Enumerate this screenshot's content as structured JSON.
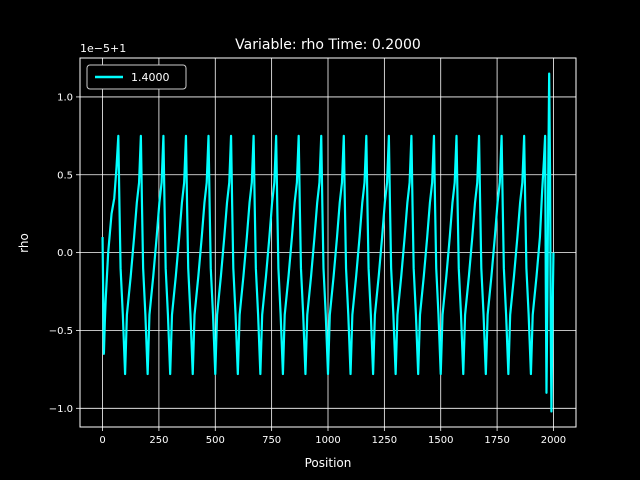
{
  "chart_data": {
    "type": "line",
    "title": "Variable: rho Time: 0.2000",
    "xlabel": "Position",
    "ylabel": "rho",
    "y_offset_label": "1e−5+1",
    "xlim": [
      -100,
      2100
    ],
    "ylim": [
      -1.12,
      1.25
    ],
    "x_ticks": [
      0,
      250,
      500,
      750,
      1000,
      1250,
      1500,
      1750,
      2000
    ],
    "x_tick_labels": [
      "0",
      "250",
      "500",
      "750",
      "1000",
      "1250",
      "1500",
      "1750",
      "2000"
    ],
    "y_ticks": [
      -1.0,
      -0.5,
      0.0,
      0.5,
      1.0
    ],
    "y_tick_labels": [
      "−1.0",
      "−0.5",
      "0.0",
      "0.5",
      "1.0"
    ],
    "grid": true,
    "legend_position": "top-left",
    "series": [
      {
        "name": "1.4000",
        "color": "#00ffff",
        "x": [
          0,
          6,
          10,
          14,
          25,
          40,
          52,
          62,
          70,
          75,
          80,
          90,
          100,
          108,
          125,
          140,
          152,
          162,
          170,
          175,
          180,
          190,
          200,
          208,
          225,
          240,
          252,
          262,
          270,
          275,
          280,
          290,
          300,
          308,
          325,
          340,
          352,
          362,
          370,
          375,
          380,
          390,
          400,
          408,
          425,
          440,
          452,
          462,
          470,
          475,
          480,
          490,
          500,
          508,
          525,
          540,
          552,
          562,
          570,
          575,
          580,
          590,
          600,
          608,
          625,
          640,
          652,
          662,
          670,
          675,
          680,
          690,
          700,
          708,
          725,
          740,
          752,
          762,
          770,
          775,
          780,
          790,
          800,
          808,
          825,
          840,
          852,
          862,
          870,
          875,
          880,
          890,
          900,
          908,
          925,
          940,
          952,
          962,
          970,
          975,
          980,
          990,
          1000,
          1008,
          1025,
          1040,
          1052,
          1062,
          1070,
          1075,
          1080,
          1090,
          1100,
          1108,
          1125,
          1140,
          1152,
          1162,
          1170,
          1175,
          1180,
          1190,
          1200,
          1208,
          1225,
          1240,
          1252,
          1262,
          1270,
          1275,
          1280,
          1290,
          1300,
          1308,
          1325,
          1340,
          1352,
          1362,
          1370,
          1375,
          1380,
          1390,
          1400,
          1408,
          1425,
          1440,
          1452,
          1462,
          1470,
          1475,
          1480,
          1490,
          1500,
          1508,
          1525,
          1540,
          1552,
          1562,
          1570,
          1575,
          1580,
          1590,
          1600,
          1608,
          1625,
          1640,
          1652,
          1662,
          1670,
          1675,
          1680,
          1690,
          1700,
          1708,
          1725,
          1740,
          1752,
          1762,
          1770,
          1775,
          1780,
          1790,
          1800,
          1808,
          1825,
          1840,
          1852,
          1862,
          1870,
          1875,
          1880,
          1890,
          1900,
          1908,
          1925,
          1940,
          1950,
          1958,
          1963,
          1966,
          1969,
          1973,
          1977,
          1981,
          1985,
          1988,
          1991,
          1994,
          1997,
          2000
        ],
        "y": [
          0.1,
          -0.65,
          -0.45,
          -0.3,
          0.0,
          0.25,
          0.35,
          0.55,
          0.75,
          0.3,
          -0.1,
          -0.4,
          -0.78,
          -0.4,
          -0.15,
          0.1,
          0.32,
          0.45,
          0.75,
          0.3,
          -0.1,
          -0.4,
          -0.78,
          -0.4,
          -0.15,
          0.1,
          0.32,
          0.45,
          0.75,
          0.3,
          -0.1,
          -0.4,
          -0.78,
          -0.4,
          -0.15,
          0.1,
          0.32,
          0.45,
          0.75,
          0.3,
          -0.1,
          -0.4,
          -0.78,
          -0.4,
          -0.15,
          0.1,
          0.32,
          0.45,
          0.75,
          0.3,
          -0.1,
          -0.4,
          -0.78,
          -0.4,
          -0.15,
          0.1,
          0.32,
          0.45,
          0.75,
          0.3,
          -0.1,
          -0.4,
          -0.78,
          -0.4,
          -0.15,
          0.1,
          0.32,
          0.45,
          0.75,
          0.3,
          -0.1,
          -0.4,
          -0.78,
          -0.4,
          -0.15,
          0.1,
          0.32,
          0.45,
          0.75,
          0.3,
          -0.1,
          -0.4,
          -0.78,
          -0.4,
          -0.15,
          0.1,
          0.32,
          0.45,
          0.75,
          0.3,
          -0.1,
          -0.4,
          -0.78,
          -0.4,
          -0.15,
          0.1,
          0.32,
          0.45,
          0.75,
          0.3,
          -0.1,
          -0.4,
          -0.78,
          -0.4,
          -0.15,
          0.1,
          0.32,
          0.45,
          0.75,
          0.3,
          -0.1,
          -0.4,
          -0.78,
          -0.4,
          -0.15,
          0.1,
          0.32,
          0.45,
          0.75,
          0.3,
          -0.1,
          -0.4,
          -0.78,
          -0.4,
          -0.15,
          0.1,
          0.32,
          0.45,
          0.75,
          0.3,
          -0.1,
          -0.4,
          -0.78,
          -0.4,
          -0.15,
          0.1,
          0.32,
          0.45,
          0.75,
          0.3,
          -0.1,
          -0.4,
          -0.78,
          -0.4,
          -0.15,
          0.1,
          0.32,
          0.45,
          0.75,
          0.3,
          -0.1,
          -0.4,
          -0.78,
          -0.4,
          -0.15,
          0.1,
          0.32,
          0.45,
          0.75,
          0.3,
          -0.1,
          -0.4,
          -0.78,
          -0.4,
          -0.15,
          0.1,
          0.32,
          0.45,
          0.75,
          0.3,
          -0.1,
          -0.4,
          -0.78,
          -0.4,
          -0.15,
          0.1,
          0.32,
          0.45,
          0.75,
          0.3,
          -0.1,
          -0.4,
          -0.78,
          -0.4,
          -0.15,
          0.1,
          0.32,
          0.45,
          0.75,
          0.3,
          -0.1,
          -0.4,
          -0.78,
          -0.4,
          -0.15,
          0.1,
          0.4,
          0.6,
          0.75,
          -0.2,
          -0.9,
          -0.3,
          0.5,
          1.15,
          0.5,
          -0.5,
          -1.02,
          -0.6,
          -0.3,
          0.0
        ]
      }
    ]
  }
}
